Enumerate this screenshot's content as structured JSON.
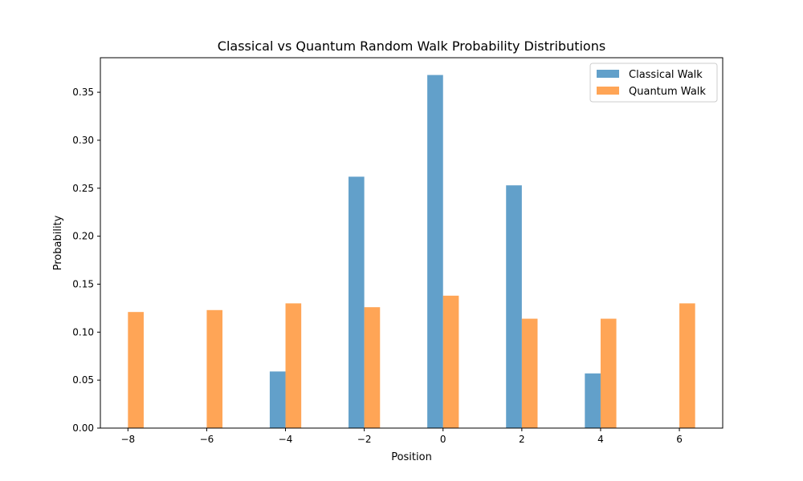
{
  "chart_data": {
    "type": "bar",
    "title": "Classical vs Quantum Random Walk Probability Distributions",
    "xlabel": "Position",
    "ylabel": "Probability",
    "xlim": [
      -8.7,
      7.1
    ],
    "ylim": [
      0,
      0.386
    ],
    "xticks": [
      -8,
      -6,
      -4,
      -2,
      0,
      2,
      4,
      6
    ],
    "xtick_labels": [
      "−8",
      "−6",
      "−4",
      "−2",
      "0",
      "2",
      "4",
      "6"
    ],
    "yticks": [
      0.0,
      0.05,
      0.1,
      0.15,
      0.2,
      0.25,
      0.3,
      0.35
    ],
    "ytick_labels": [
      "0.00",
      "0.05",
      "0.10",
      "0.15",
      "0.20",
      "0.25",
      "0.30",
      "0.35"
    ],
    "bar_width": 0.4,
    "grid": false,
    "legend_position": "top-right",
    "series": [
      {
        "name": "Classical Walk",
        "color": "#1f77b4",
        "opacity": 0.7,
        "offset": -0.2,
        "x": [
          -4,
          -2,
          0,
          2,
          4
        ],
        "values": [
          0.059,
          0.262,
          0.368,
          0.253,
          0.057
        ]
      },
      {
        "name": "Quantum Walk",
        "color": "#ff7f0e",
        "opacity": 0.7,
        "offset": 0.2,
        "x": [
          -8,
          -6,
          -4,
          -2,
          0,
          2,
          4,
          6
        ],
        "values": [
          0.121,
          0.123,
          0.13,
          0.126,
          0.138,
          0.114,
          0.114,
          0.13
        ]
      }
    ]
  }
}
